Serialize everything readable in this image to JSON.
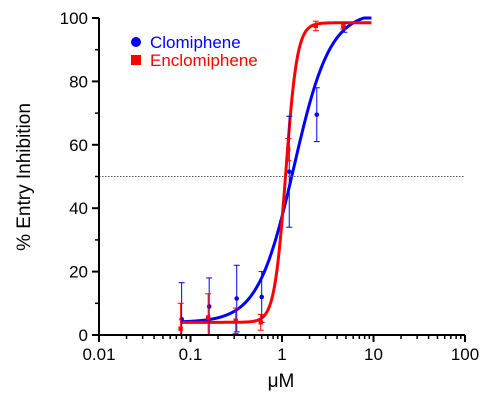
{
  "chart_data": {
    "type": "scatter",
    "xlabel": "μM",
    "ylabel": "% Entry Inhibition",
    "xscale": "log",
    "xlim": [
      0.01,
      100
    ],
    "ylim": [
      0,
      100
    ],
    "x_ticks": [
      "0.01",
      "0.1",
      "1",
      "10",
      "100"
    ],
    "y_ticks": [
      "0",
      "20",
      "40",
      "60",
      "80",
      "100"
    ],
    "reference_line": {
      "y": 50,
      "style": "dotted"
    },
    "legend_position": "top-left",
    "series": [
      {
        "name": "Clomiphene",
        "color": "#0000ff",
        "marker": "circle",
        "points": [
          {
            "x": 0.08,
            "y": 5,
            "err": 11.5
          },
          {
            "x": 0.16,
            "y": 9,
            "err": 9
          },
          {
            "x": 0.32,
            "y": 11.5,
            "err": 10.5
          },
          {
            "x": 0.6,
            "y": 12,
            "err": 8
          },
          {
            "x": 1.2,
            "y": 51.5,
            "err": 17.5
          },
          {
            "x": 2.4,
            "y": 69.5,
            "err": 8.5
          },
          {
            "x": 4.8,
            "y": 97,
            "err": 1.5
          }
        ],
        "fit": {
          "bottom": 4,
          "top": 102,
          "ec50": 1.35,
          "hill": 2.2
        }
      },
      {
        "name": "Enclomiphene",
        "color": "#ff0000",
        "marker": "square",
        "points": [
          {
            "x": 0.08,
            "y": 2,
            "err": 8
          },
          {
            "x": 0.16,
            "y": 5.5,
            "err": 7.5
          },
          {
            "x": 0.32,
            "y": 4.5,
            "err": 4
          },
          {
            "x": 0.6,
            "y": 4,
            "err": 2.5
          },
          {
            "x": 1.2,
            "y": 58.5,
            "err": 3.5
          },
          {
            "x": 2.4,
            "y": 97.5,
            "err": 1.5
          },
          {
            "x": 4.8,
            "y": 97.5,
            "err": 1
          }
        ],
        "fit": {
          "bottom": 4,
          "top": 98.5,
          "ec50": 1.1,
          "hill": 7
        }
      }
    ]
  }
}
